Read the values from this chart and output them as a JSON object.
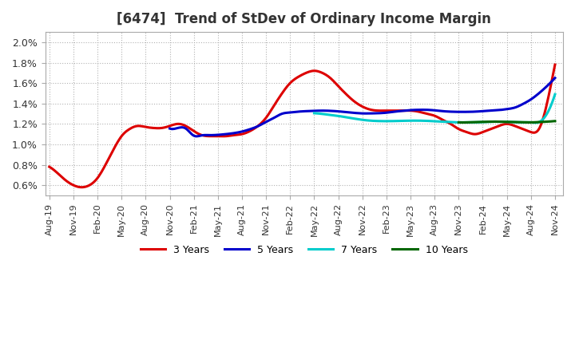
{
  "title": "[6474]  Trend of StDev of Ordinary Income Margin",
  "ylim": [
    0.005,
    0.021
  ],
  "yticks": [
    0.006,
    0.008,
    0.01,
    0.012,
    0.014,
    0.016,
    0.018,
    0.02
  ],
  "background_color": "#ffffff",
  "plot_bg_color": "#ffffff",
  "grid_color": "#aaaaaa",
  "series": {
    "3 Years": {
      "color": "#dd0000",
      "x_indices": [
        0,
        1,
        2,
        3,
        4,
        5,
        6,
        7,
        8,
        9,
        10,
        11,
        12,
        13,
        14,
        15,
        16,
        17,
        18,
        19,
        20,
        21,
        22,
        23,
        24,
        25,
        26,
        27,
        28,
        29,
        30,
        31,
        32,
        33,
        34,
        35,
        36,
        37,
        38,
        39,
        40,
        41,
        42,
        43,
        44,
        45,
        46,
        47,
        48,
        49,
        50,
        51,
        52,
        53,
        54,
        55,
        56,
        57,
        58,
        59,
        60,
        61,
        62,
        63
      ],
      "y": [
        0.0078,
        0.0072,
        0.0065,
        0.006,
        0.0058,
        0.006,
        0.0067,
        0.008,
        0.0095,
        0.0108,
        0.0115,
        0.0118,
        0.0117,
        0.0116,
        0.0116,
        0.0118,
        0.012,
        0.0118,
        0.0113,
        0.0109,
        0.0108,
        0.0108,
        0.0108,
        0.0109,
        0.011,
        0.0113,
        0.0118,
        0.0126,
        0.0138,
        0.015,
        0.016,
        0.0166,
        0.017,
        0.0172,
        0.017,
        0.0165,
        0.0157,
        0.0149,
        0.0142,
        0.0137,
        0.0134,
        0.0133,
        0.0133,
        0.0133,
        0.0133,
        0.0133,
        0.0132,
        0.013,
        0.0128,
        0.0124,
        0.012,
        0.0115,
        0.0112,
        0.011,
        0.0112,
        0.0115,
        0.0118,
        0.012,
        0.0118,
        0.0115,
        0.0112,
        0.0115,
        0.014,
        0.0178
      ]
    },
    "5 Years": {
      "color": "#0000cc",
      "x_indices": [
        15,
        16,
        17,
        18,
        19,
        20,
        21,
        22,
        23,
        24,
        25,
        26,
        27,
        28,
        29,
        30,
        31,
        32,
        33,
        34,
        35,
        36,
        37,
        38,
        39,
        40,
        41,
        42,
        43,
        44,
        45,
        46,
        47,
        48,
        49,
        50,
        51,
        52,
        53,
        54,
        55,
        56,
        57,
        58,
        59,
        60,
        61,
        62,
        63
      ],
      "y": [
        0.01155,
        0.0116,
        0.01155,
        0.01085,
        0.01088,
        0.0109,
        0.01093,
        0.011,
        0.0111,
        0.01125,
        0.01148,
        0.01178,
        0.0122,
        0.0126,
        0.013,
        0.01312,
        0.0132,
        0.01325,
        0.01328,
        0.0133,
        0.01328,
        0.01323,
        0.01315,
        0.01308,
        0.01303,
        0.01303,
        0.01305,
        0.0131,
        0.0132,
        0.01328,
        0.01335,
        0.01338,
        0.01338,
        0.01333,
        0.01325,
        0.0132,
        0.01318,
        0.01318,
        0.0132,
        0.01325,
        0.0133,
        0.01335,
        0.01345,
        0.0136,
        0.01395,
        0.0144,
        0.015,
        0.0157,
        0.0165
      ]
    },
    "7 Years": {
      "color": "#00cccc",
      "x_indices": [
        33,
        34,
        35,
        36,
        37,
        38,
        39,
        40,
        41,
        42,
        43,
        44,
        45,
        46,
        47,
        48,
        49,
        50,
        51,
        52,
        53,
        54,
        55,
        56,
        57,
        58,
        59,
        60,
        61,
        62,
        63
      ],
      "y": [
        0.01305,
        0.01298,
        0.01288,
        0.01278,
        0.01265,
        0.01252,
        0.0124,
        0.01232,
        0.01228,
        0.01227,
        0.01228,
        0.0123,
        0.01232,
        0.01232,
        0.0123,
        0.01226,
        0.01222,
        0.01218,
        0.01215,
        0.01215,
        0.01216,
        0.01218,
        0.01222,
        0.01222,
        0.0122,
        0.01218,
        0.01215,
        0.01215,
        0.01218,
        0.013,
        0.0149
      ]
    },
    "10 Years": {
      "color": "#006600",
      "x_indices": [
        51,
        52,
        53,
        54,
        55,
        56,
        57,
        58,
        59,
        60,
        61,
        62,
        63
      ],
      "y": [
        0.01215,
        0.01215,
        0.01218,
        0.0122,
        0.01222,
        0.01222,
        0.0122,
        0.01218,
        0.01216,
        0.01215,
        0.01218,
        0.01222,
        0.01228
      ]
    }
  },
  "x_labels": [
    "Aug-19",
    "Nov-19",
    "Feb-20",
    "May-20",
    "Aug-20",
    "Nov-20",
    "Feb-21",
    "May-21",
    "Aug-21",
    "Nov-21",
    "Feb-22",
    "May-22",
    "Aug-22",
    "Nov-22",
    "Feb-23",
    "May-23",
    "Aug-23",
    "Nov-23",
    "Feb-24",
    "May-24",
    "Aug-24",
    "Nov-24"
  ],
  "x_label_indices": [
    0,
    3,
    6,
    9,
    12,
    15,
    18,
    21,
    24,
    27,
    30,
    33,
    36,
    39,
    42,
    45,
    48,
    51,
    54,
    57,
    60,
    63
  ],
  "legend": [
    "3 Years",
    "5 Years",
    "7 Years",
    "10 Years"
  ],
  "legend_colors": [
    "#dd0000",
    "#0000cc",
    "#00cccc",
    "#006600"
  ]
}
